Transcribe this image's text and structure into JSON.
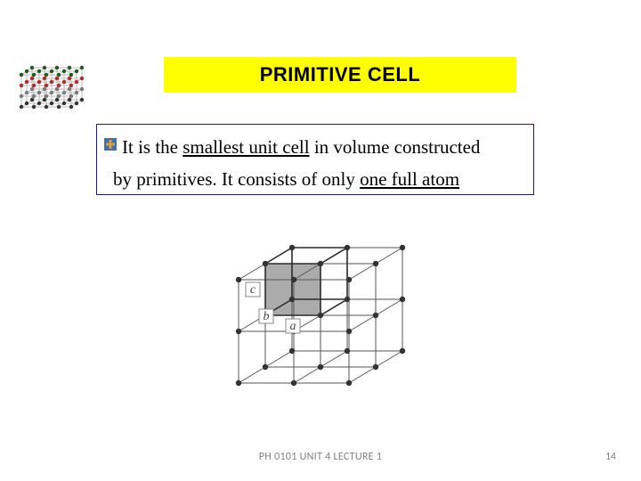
{
  "title": "PRIMITIVE CELL",
  "body": {
    "line1_pre": "It is the ",
    "line1_ul": "smallest unit cell",
    "line1_post": " in volume constructed",
    "line2_pre": "by primitives. It consists of only ",
    "line2_ul": "one full atom"
  },
  "footer": {
    "center": "PH 0101    UNIT 4    LECTURE 1",
    "page": "14"
  },
  "diagram": {
    "labels": {
      "a": "a",
      "b": "b",
      "c": "c"
    },
    "colors": {
      "line": "#555555",
      "node": "#333333",
      "shade": "#9c9c9c",
      "label_bg": "#ffffff",
      "label_border": "#888888",
      "label_text": "#444444",
      "label_font": "italic 14px Times New Roman"
    }
  },
  "thumb": {
    "colors": {
      "rod": "#bcbcbc",
      "atom_rows": [
        "#333333",
        "#7a7a7a",
        "#b12a2a",
        "#1f5a1f"
      ]
    }
  },
  "style": {
    "title_bg": "#ffff00",
    "title_color": "#000000",
    "title_fontsize": 22,
    "body_border": "#1a1a8e",
    "body_fontsize": 21,
    "footer_color": "#808080",
    "footer_fontsize": 12,
    "bullet": {
      "base": "#3b6fb6",
      "plus": "#e0a030"
    }
  }
}
